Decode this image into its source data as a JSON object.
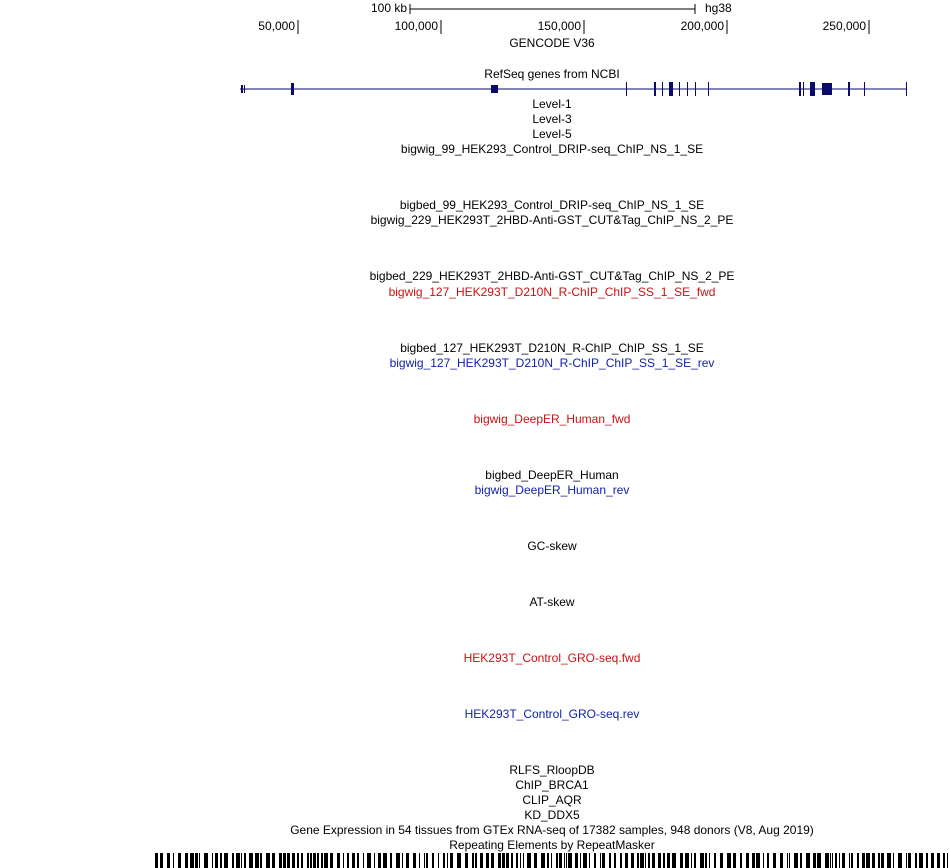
{
  "ruler": {
    "scale": "100 kb",
    "assembly": "hg38",
    "ticks": [
      "50,000",
      "100,000",
      "150,000",
      "200,000",
      "250,000"
    ]
  },
  "gencode": "GENCODE V36",
  "refseq": "RefSeq genes from NCBI",
  "tracks": [
    {
      "label": "Level-1",
      "color": "#000000"
    },
    {
      "label": "Level-3",
      "color": "#000000"
    },
    {
      "label": "Level-5",
      "color": "#000000"
    },
    {
      "label": "bigwig_99_HEK293_Control_DRIP-seq_ChIP_NS_1_SE",
      "color": "#000000"
    },
    {
      "label": "bigbed_99_HEK293_Control_DRIP-seq_ChIP_NS_1_SE",
      "color": "#000000"
    },
    {
      "label": "bigwig_229_HEK293T_2HBD-Anti-GST_CUT&Tag_ChIP_NS_2_PE",
      "color": "#000000"
    },
    {
      "label": "bigbed_229_HEK293T_2HBD-Anti-GST_CUT&Tag_ChIP_NS_2_PE",
      "color": "#000000"
    },
    {
      "label": "bigwig_127_HEK293T_D210N_R-ChIP_ChIP_SS_1_SE_fwd",
      "color": "#cc1111"
    },
    {
      "label": "bigbed_127_HEK293T_D210N_R-ChIP_ChIP_SS_1_SE",
      "color": "#000000"
    },
    {
      "label": "bigwig_127_HEK293T_D210N_R-ChIP_ChIP_SS_1_SE_rev",
      "color": "#1122aa"
    },
    {
      "label": "bigwig_DeepER_Human_fwd",
      "color": "#cc1111"
    },
    {
      "label": "bigbed_DeepER_Human",
      "color": "#000000"
    },
    {
      "label": "bigwig_DeepER_Human_rev",
      "color": "#1122aa"
    },
    {
      "label": "GC-skew",
      "color": "#000000"
    },
    {
      "label": "AT-skew",
      "color": "#000000"
    },
    {
      "label": "HEK293T_Control_GRO-seq.fwd",
      "color": "#cc1111"
    },
    {
      "label": "HEK293T_Control_GRO-seq.rev",
      "color": "#1122aa"
    },
    {
      "label": "RLFS_RloopDB",
      "color": "#000000"
    },
    {
      "label": "ChIP_BRCA1",
      "color": "#000000"
    },
    {
      "label": "CLIP_AQR",
      "color": "#000000"
    },
    {
      "label": "KD_DDX5",
      "color": "#000000"
    },
    {
      "label": "Gene Expression in 54 tissues from GTEx RNA-seq of 17382 samples, 948 donors (V8, Aug 2019)",
      "color": "#000000"
    },
    {
      "label": "Repeating Elements by RepeatMasker",
      "color": "#000000"
    }
  ]
}
